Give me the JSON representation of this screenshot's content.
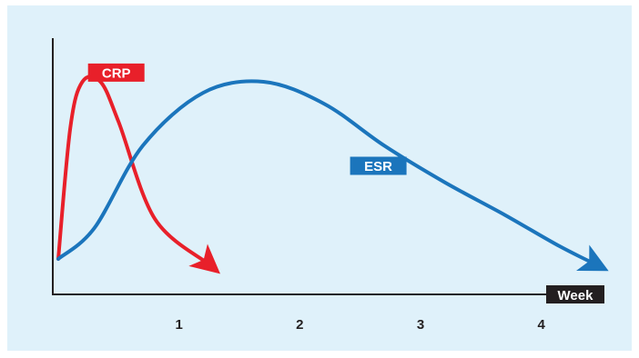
{
  "chart_data": {
    "type": "line",
    "x_unit_label": "Week",
    "x_ticks": [
      1,
      2,
      3,
      4
    ],
    "xlim": [
      0,
      4.5
    ],
    "ylim": [
      0,
      1
    ],
    "y_axis_labels": false,
    "grid": false,
    "series": [
      {
        "name": "CRP",
        "color": "#e8202a",
        "points": [
          [
            0,
            0.03
          ],
          [
            0.1,
            0.75
          ],
          [
            0.2,
            1.0
          ],
          [
            0.35,
            1.0
          ],
          [
            0.5,
            0.78
          ],
          [
            0.8,
            0.25
          ],
          [
            1.25,
            0.0
          ]
        ]
      },
      {
        "name": "ESR",
        "color": "#1b75bc",
        "points": [
          [
            0,
            0.03
          ],
          [
            0.3,
            0.2
          ],
          [
            0.7,
            0.65
          ],
          [
            1.2,
            0.94
          ],
          [
            1.7,
            1.0
          ],
          [
            2.2,
            0.88
          ],
          [
            2.7,
            0.65
          ],
          [
            3.2,
            0.45
          ],
          [
            3.7,
            0.27
          ],
          [
            4.15,
            0.1
          ],
          [
            4.45,
            0.0
          ]
        ]
      }
    ]
  }
}
